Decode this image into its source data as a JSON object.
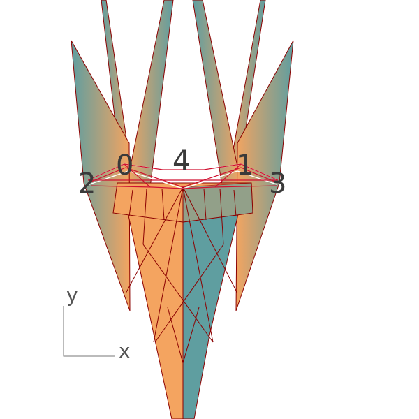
{
  "node_labels": [
    "0",
    "1",
    "2",
    "3",
    "4"
  ],
  "axes": {
    "x_label": "x",
    "y_label": "y"
  },
  "colors": {
    "teal": "#5f9ea0",
    "orange": "#f4a460",
    "edge": "#8b0000",
    "ring": "#d01030",
    "background": "#ffffff"
  }
}
